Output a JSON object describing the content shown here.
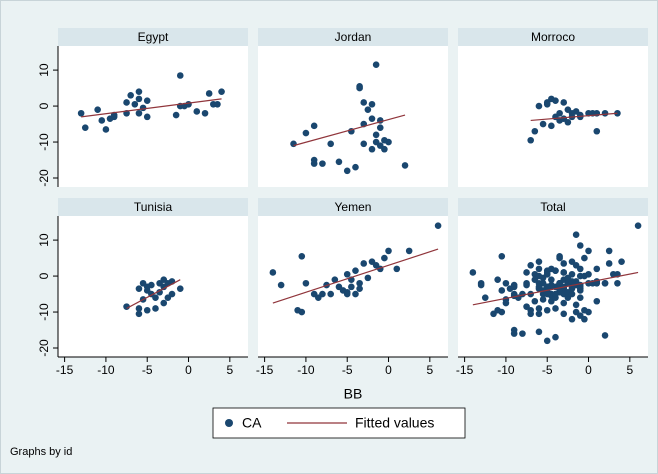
{
  "x_label": "BB",
  "note": "Graphs by id",
  "chart_data": [
    {
      "type": "scatter",
      "title": "Egypt",
      "xlim": [
        -15.8,
        7.2
      ],
      "ylim": [
        -22.5,
        16.7
      ],
      "yticks": [
        -20,
        -10,
        0,
        10
      ],
      "series": [
        {
          "name": "CA",
          "mode": "markers",
          "color": "#1a476f",
          "x": [
            -13,
            -12.5,
            -11,
            -10.5,
            -10,
            -9.5,
            -9,
            -9,
            -7.5,
            -7.5,
            -7,
            -6.5,
            -6,
            -6,
            -6,
            -5.5,
            -5,
            -5,
            -1.5,
            -1,
            -1,
            -0.5,
            0,
            1,
            2,
            2.5,
            3,
            3.5,
            4
          ],
          "values": [
            -2,
            -6,
            -1,
            -4,
            -6.5,
            -3.5,
            -2.5,
            -3,
            -2,
            1,
            3,
            0.5,
            2,
            4,
            -2,
            -0.5,
            -3,
            1.5,
            -2.5,
            0,
            8.5,
            0,
            0.5,
            -1.5,
            -2,
            3.5,
            0.5,
            0.5,
            4
          ]
        },
        {
          "name": "Fitted values",
          "mode": "line",
          "color": "#90353b",
          "x": [
            -13,
            4
          ],
          "values": [
            -3,
            2
          ]
        }
      ]
    },
    {
      "type": "scatter",
      "title": "Jordan",
      "xlim": [
        -15.8,
        7.2
      ],
      "ylim": [
        -22.5,
        16.7
      ],
      "series": [
        {
          "name": "CA",
          "mode": "markers",
          "color": "#1a476f",
          "x": [
            -11.5,
            -10,
            -9,
            -9,
            -9,
            -8,
            -7,
            -6,
            -5,
            -4.5,
            -4,
            -3.5,
            -3.5,
            -3,
            -3,
            -3,
            -2.5,
            -2,
            -2,
            -2,
            -1.5,
            -1.5,
            -1.5,
            -1,
            -1,
            -1,
            0,
            -0.5,
            2,
            -0.5
          ],
          "values": [
            -10.5,
            -7.5,
            -5.5,
            -15,
            -16,
            -16,
            -10.5,
            -15.5,
            -18,
            -7,
            -17,
            5.5,
            5,
            1,
            -5,
            -10.5,
            -1,
            0.5,
            -3.5,
            -12,
            11.5,
            -8,
            -10,
            -11,
            -6,
            -4,
            -10,
            -9.5,
            -16.5,
            -12
          ]
        },
        {
          "name": "Fitted values",
          "mode": "line",
          "color": "#90353b",
          "x": [
            -11.5,
            2
          ],
          "values": [
            -11,
            -2.5
          ]
        }
      ]
    },
    {
      "type": "scatter",
      "title": "Morroco",
      "xlim": [
        -15.8,
        7.2
      ],
      "ylim": [
        -22.5,
        16.7
      ],
      "series": [
        {
          "name": "CA",
          "mode": "markers",
          "color": "#1a476f",
          "x": [
            -7,
            -6.5,
            -6,
            -5.5,
            -5,
            -5,
            -4.5,
            -4,
            -4,
            -3.5,
            -3,
            -3,
            -2.5,
            -2,
            -2,
            -1.5,
            -1,
            -1,
            0,
            0.5,
            1,
            1,
            2,
            3.5,
            -4.5,
            -3.5,
            -2.5
          ],
          "values": [
            -9.5,
            -7,
            0,
            -5,
            1,
            0.5,
            2,
            1.5,
            -3,
            -4,
            -3.5,
            1,
            -1,
            -3,
            -2,
            -1.5,
            -2.5,
            -3,
            -2,
            -2,
            -7,
            -2,
            -2,
            -2,
            -5.5,
            -2,
            -4.5
          ]
        },
        {
          "name": "Fitted values",
          "mode": "line",
          "color": "#90353b",
          "x": [
            -7,
            3.5
          ],
          "values": [
            -4,
            -2
          ]
        }
      ]
    },
    {
      "type": "scatter",
      "title": "Tunisia",
      "xlim": [
        -15.8,
        7.2
      ],
      "ylim": [
        -22.5,
        16.7
      ],
      "yticks": [
        -20,
        -10,
        0,
        10
      ],
      "xticks": [
        -15,
        -10,
        -5,
        0,
        5
      ],
      "series": [
        {
          "name": "CA",
          "mode": "markers",
          "color": "#1a476f",
          "x": [
            -7.5,
            -6,
            -6,
            -5.5,
            -5.5,
            -5,
            -5,
            -4.5,
            -4.5,
            -4,
            -4,
            -3.5,
            -3.5,
            -3,
            -3,
            -2.5,
            -2.5,
            -2,
            -2,
            -1,
            -5,
            -3,
            -6
          ],
          "values": [
            -8.5,
            -9,
            -10.5,
            -2,
            -6.5,
            -4,
            -9.5,
            -5,
            -2.5,
            -6,
            -9,
            -4.5,
            -2,
            -1,
            -3,
            -6,
            -2,
            -5,
            -1.5,
            -3.5,
            -3,
            -7.5,
            -3.5
          ]
        },
        {
          "name": "Fitted values",
          "mode": "line",
          "color": "#90353b",
          "x": [
            -7.5,
            -1
          ],
          "values": [
            -9,
            -1
          ]
        }
      ]
    },
    {
      "type": "scatter",
      "title": "Yemen",
      "xlim": [
        -15.8,
        7.2
      ],
      "ylim": [
        -22.5,
        16.7
      ],
      "xticks": [
        -15,
        -10,
        -5,
        0,
        5
      ],
      "series": [
        {
          "name": "CA",
          "mode": "markers",
          "color": "#1a476f",
          "x": [
            -14,
            -13,
            -11,
            -10.5,
            -10.5,
            -10,
            -9,
            -8.5,
            -8,
            -7.5,
            -7,
            -6.5,
            -6,
            -5.5,
            -5,
            -5,
            -4.5,
            -4.5,
            -4,
            -4,
            -3.5,
            -3,
            -2.5,
            -2,
            -1.5,
            -1,
            -0.5,
            0,
            1,
            2.5,
            6,
            -5,
            -3.5
          ],
          "values": [
            1,
            -2.5,
            -9.5,
            -10,
            5.5,
            -2,
            -5,
            -6,
            -5,
            -2.5,
            -5,
            -1,
            -3,
            -4,
            0.5,
            -4.5,
            -3,
            -1,
            1.5,
            -5,
            -2,
            3.5,
            -0.5,
            4,
            3,
            2,
            5,
            7,
            2,
            7,
            14,
            -5,
            -3.5
          ]
        },
        {
          "name": "Fitted values",
          "mode": "line",
          "color": "#90353b",
          "x": [
            -14,
            6
          ],
          "values": [
            -7.5,
            7.5
          ]
        }
      ]
    },
    {
      "type": "scatter",
      "title": "Total",
      "xlim": [
        -15.8,
        7.2
      ],
      "ylim": [
        -22.5,
        16.7
      ],
      "xticks": [
        -15,
        -10,
        -5,
        0,
        5
      ],
      "series": [
        {
          "name": "CA",
          "mode": "markers",
          "color": "#1a476f",
          "x": [
            -13,
            -12.5,
            -11,
            -10.5,
            -10,
            -9.5,
            -9,
            -9,
            -7.5,
            -7.5,
            -7,
            -6.5,
            -6,
            -6,
            -6,
            -5.5,
            -5,
            -5,
            -1.5,
            -1,
            -1,
            -0.5,
            0,
            1,
            2,
            2.5,
            3,
            3.5,
            4,
            -11.5,
            -10,
            -9,
            -9,
            -9,
            -8,
            -7,
            -6,
            -5,
            -4.5,
            -4,
            -3.5,
            -3.5,
            -3,
            -3,
            -3,
            -2.5,
            -2,
            -2,
            -2,
            -1.5,
            -1.5,
            -1.5,
            -1,
            -1,
            -1,
            0,
            -0.5,
            2,
            -0.5,
            -7,
            -6.5,
            -6,
            -5.5,
            -5,
            -5,
            -4.5,
            -4,
            -4,
            -3.5,
            -3,
            -3,
            -2.5,
            -2,
            -2,
            -1.5,
            -1,
            -1,
            0,
            0.5,
            1,
            1,
            2,
            3.5,
            -4.5,
            -3.5,
            -2.5,
            -7.5,
            -6,
            -6,
            -5.5,
            -5.5,
            -5,
            -5,
            -4.5,
            -4.5,
            -4,
            -4,
            -3.5,
            -3.5,
            -3,
            -3,
            -2.5,
            -2.5,
            -2,
            -2,
            -1,
            -5,
            -3,
            -6,
            -14,
            -13,
            -11,
            -10.5,
            -10.5,
            -10,
            -9,
            -8.5,
            -8,
            -7.5,
            -7,
            -6.5,
            -6,
            -5.5,
            -5,
            -5,
            -4.5,
            -4.5,
            -4,
            -4,
            -3.5,
            -3,
            -2.5,
            -2,
            -1.5,
            -1,
            -0.5,
            0,
            1,
            2.5,
            6,
            -5,
            -3.5
          ],
          "values": [
            -2,
            -6,
            -1,
            -4,
            -6.5,
            -3.5,
            -2.5,
            -3,
            -2,
            1,
            3,
            0.5,
            2,
            4,
            -2,
            -0.5,
            -3,
            1.5,
            -2.5,
            0,
            8.5,
            0,
            0.5,
            -1.5,
            -2,
            3.5,
            0.5,
            0.5,
            4,
            -10.5,
            -7.5,
            -5.5,
            -15,
            -16,
            -16,
            -10.5,
            -15.5,
            -18,
            -7,
            -17,
            5.5,
            5,
            1,
            -5,
            -10.5,
            -1,
            0.5,
            -3.5,
            -12,
            11.5,
            -8,
            -10,
            -11,
            -6,
            -4,
            -10,
            -9.5,
            -16.5,
            -12,
            -9.5,
            -7,
            0,
            -5,
            1,
            0.5,
            2,
            1.5,
            -3,
            -4,
            -3.5,
            1,
            -1,
            -3,
            -2,
            -1.5,
            -2.5,
            -3,
            -2,
            -2,
            -7,
            -2,
            -2,
            -2,
            -5.5,
            -2,
            -4.5,
            -8.5,
            -9,
            -10.5,
            -2,
            -6.5,
            -4,
            -9.5,
            -5,
            -2.5,
            -6,
            -9,
            -4.5,
            -2,
            -1,
            -3,
            -6,
            -2,
            -5,
            -1.5,
            -3.5,
            -3,
            -7.5,
            -3.5,
            1,
            -2.5,
            -9.5,
            -10,
            5.5,
            -2,
            -5,
            -6,
            -5,
            -2.5,
            -5,
            -1,
            -3,
            -4,
            0.5,
            -4.5,
            -3,
            -1,
            1.5,
            -5,
            -2,
            3.5,
            -0.5,
            4,
            3,
            2,
            5,
            7,
            2,
            7,
            14,
            -5,
            -3.5
          ]
        },
        {
          "name": "Fitted values",
          "mode": "line",
          "color": "#90353b",
          "x": [
            -14,
            6
          ],
          "values": [
            -8,
            1
          ]
        }
      ]
    }
  ]
}
